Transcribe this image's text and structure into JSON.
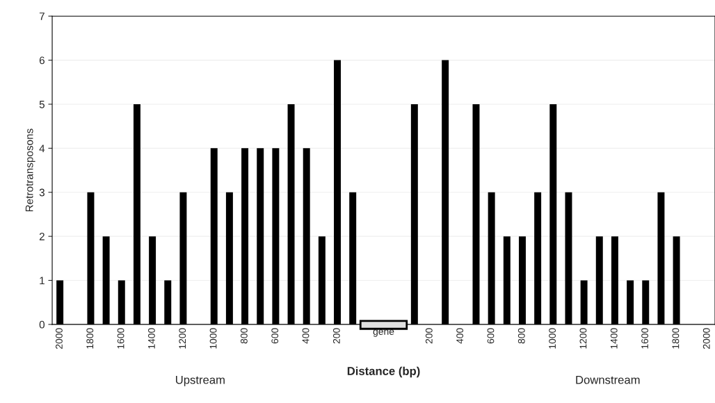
{
  "chart_data": {
    "type": "bar",
    "ylabel": "Retrotransposons",
    "xlabel": "Distance (bp)",
    "categories": [
      "2000",
      null,
      "1800",
      null,
      "1600",
      null,
      "1400",
      null,
      "1200",
      null,
      "1000",
      null,
      "800",
      null,
      "600",
      null,
      "400",
      null,
      "200",
      null,
      null,
      "gene",
      null,
      null,
      "200",
      null,
      "400",
      null,
      "600",
      null,
      "800",
      null,
      "1000",
      null,
      "1200",
      null,
      "1400",
      null,
      "1600",
      null,
      "1800",
      null,
      "2000"
    ],
    "values": [
      1,
      null,
      3,
      2,
      1,
      5,
      2,
      1,
      3,
      null,
      4,
      3,
      4,
      4,
      4,
      5,
      4,
      2,
      6,
      3,
      null,
      null,
      null,
      5,
      null,
      6,
      null,
      5,
      3,
      2,
      2,
      3,
      5,
      3,
      1,
      2,
      2,
      1,
      1,
      3,
      2,
      null,
      null
    ],
    "color": "#000000",
    "ylim": [
      0,
      7
    ],
    "yticks": [
      0,
      1,
      2,
      3,
      4,
      5,
      6,
      7
    ],
    "grid": "y",
    "annotations": [
      "Upstream",
      "Downstream"
    ]
  }
}
